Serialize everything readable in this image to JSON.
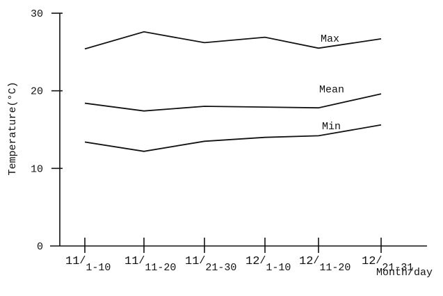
{
  "chart_data": {
    "type": "line",
    "xlabel": "Month/day",
    "ylabel": "Temperature(°C)",
    "ylim": [
      0,
      30
    ],
    "yticks": [
      0,
      10,
      20,
      30
    ],
    "grid": false,
    "legend": "inline labels at right end of each line",
    "categories": [
      {
        "month": "11",
        "days": "1-10"
      },
      {
        "month": "11",
        "days": "11-20"
      },
      {
        "month": "11",
        "days": "21-30"
      },
      {
        "month": "12",
        "days": "1-10"
      },
      {
        "month": "12",
        "days": "11-20"
      },
      {
        "month": "12",
        "days": "21-31"
      }
    ],
    "series": [
      {
        "name": "Max",
        "values": [
          25.4,
          27.6,
          26.2,
          26.9,
          25.5,
          26.7
        ]
      },
      {
        "name": "Mean",
        "values": [
          18.4,
          17.4,
          18.0,
          17.9,
          17.8,
          19.6
        ]
      },
      {
        "name": "Min",
        "values": [
          13.4,
          12.2,
          13.5,
          14.0,
          14.2,
          15.6
        ]
      }
    ]
  }
}
